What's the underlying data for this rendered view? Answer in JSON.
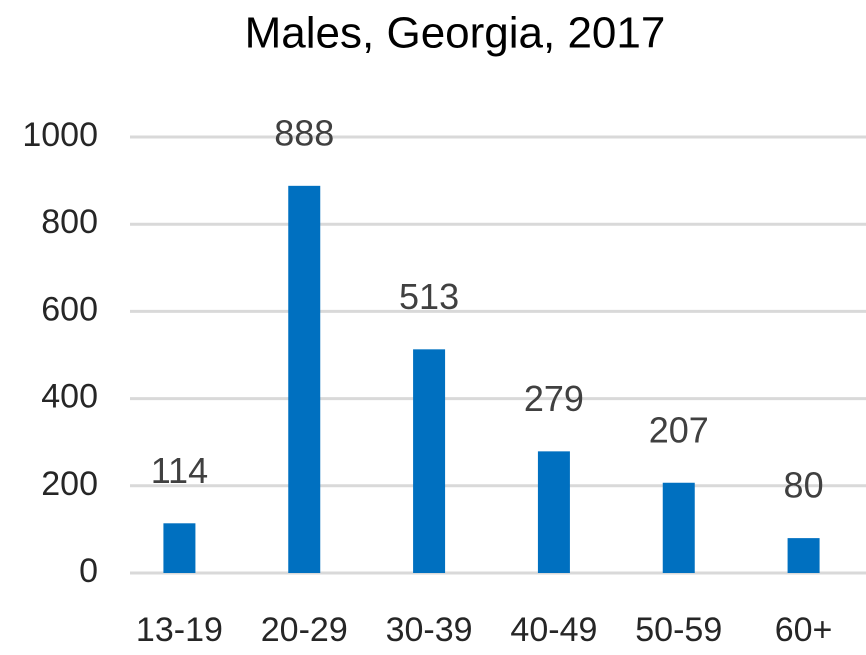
{
  "chart_data": {
    "type": "bar",
    "title": "Males, Georgia, 2017",
    "categories": [
      "13-19",
      "20-29",
      "30-39",
      "40-49",
      "50-59",
      "60+"
    ],
    "values": [
      114,
      888,
      513,
      279,
      207,
      80
    ],
    "color": "#0070c0",
    "ylim": [
      0,
      1000
    ],
    "yticks": [
      0,
      200,
      400,
      600,
      800,
      1000
    ],
    "grid": true
  }
}
